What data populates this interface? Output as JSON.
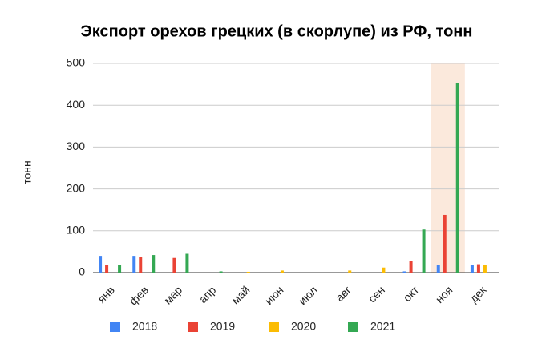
{
  "chart_data": {
    "type": "bar",
    "title": "Экспорт орехов грецких (в скорлупе) из РФ, тонн",
    "y_label": "тонн",
    "categories": [
      "янв",
      "фев",
      "мар",
      "апр",
      "май",
      "июн",
      "июл",
      "авг",
      "сен",
      "окт",
      "ноя",
      "дек"
    ],
    "series": [
      {
        "name": "2018",
        "color": "#4285f4",
        "values": [
          40,
          40,
          0,
          0,
          0,
          0,
          0,
          0,
          0,
          3,
          18,
          18
        ]
      },
      {
        "name": "2019",
        "color": "#ea4335",
        "values": [
          18,
          37,
          35,
          0,
          0,
          0,
          0,
          0,
          0,
          28,
          138,
          20
        ]
      },
      {
        "name": "2020",
        "color": "#fbbc04",
        "values": [
          0,
          0,
          0,
          0,
          2,
          5,
          0,
          5,
          12,
          0,
          0,
          18
        ]
      },
      {
        "name": "2021",
        "color": "#34a853",
        "values": [
          18,
          42,
          45,
          3,
          0,
          0,
          0,
          0,
          0,
          103,
          453,
          0
        ]
      }
    ],
    "ylim": [
      0,
      500
    ],
    "yticks": [
      0,
      100,
      200,
      300,
      400,
      500
    ],
    "grid": true,
    "highlight_category_index": 10,
    "highlight_color": "#fbe9dc"
  }
}
